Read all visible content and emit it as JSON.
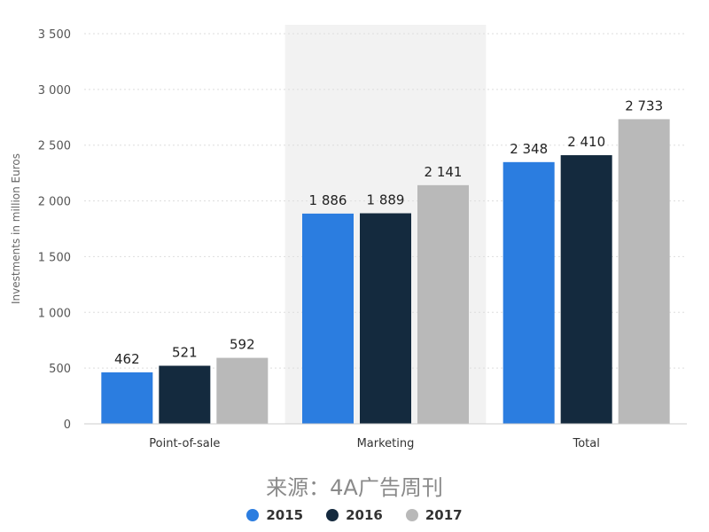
{
  "chart_data": {
    "type": "bar",
    "categories": [
      "Point-of-sale",
      "Marketing",
      "Total"
    ],
    "series": [
      {
        "name": "2015",
        "values": [
          462,
          1886,
          2348
        ],
        "labels": [
          "462",
          "1 886",
          "2 348"
        ],
        "color": "#2b7de0"
      },
      {
        "name": "2016",
        "values": [
          521,
          1889,
          2410
        ],
        "labels": [
          "521",
          "1 889",
          "2 410"
        ],
        "color": "#142a3e"
      },
      {
        "name": "2017",
        "values": [
          592,
          2141,
          2733
        ],
        "labels": [
          "592",
          "2 141",
          "2 733"
        ],
        "color": "#b9b9b9"
      }
    ],
    "ylabel": "Investments in million Euros",
    "ylim": [
      0,
      3500
    ],
    "yticks": [
      0,
      500,
      1000,
      1500,
      2000,
      2500,
      3000,
      3500
    ],
    "ytick_labels": [
      "0",
      "500",
      "1 000",
      "1 500",
      "2 000",
      "2 500",
      "3 000",
      "3 500"
    ],
    "grid": true,
    "legend_position": "bottom"
  },
  "source_caption": "来源：4A广告周刊",
  "colors": {
    "highlight_band": "#f2f2f2",
    "gridline": "#dddddd"
  }
}
